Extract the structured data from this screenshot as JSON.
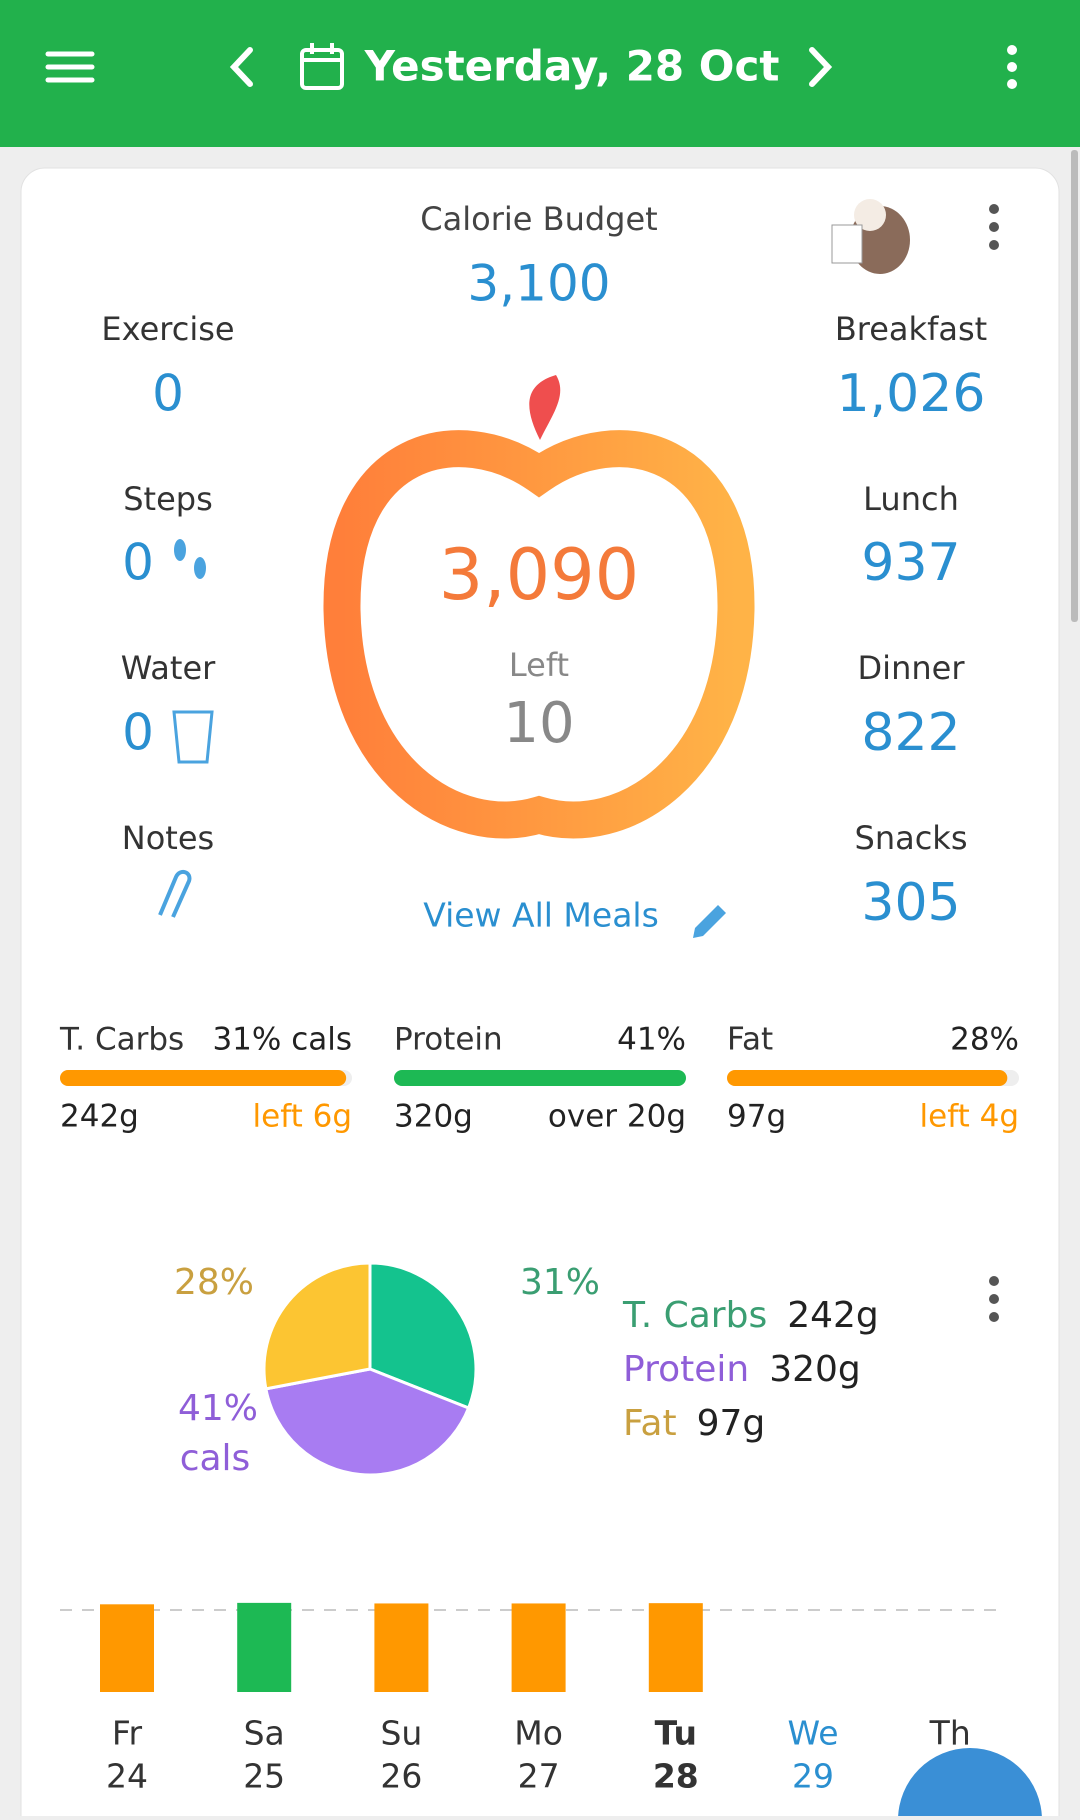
{
  "header": {
    "title": "Yesterday, 28 Oct"
  },
  "summary": {
    "budget_label": "Calorie Budget",
    "budget": "3,100",
    "activity": [
      {
        "label": "Exercise",
        "value": "0"
      },
      {
        "label": "Steps",
        "value": "0"
      },
      {
        "label": "Water",
        "value": "0"
      }
    ],
    "notes_label": "Notes",
    "meals": [
      {
        "label": "Breakfast",
        "value": "1,026"
      },
      {
        "label": "Lunch",
        "value": "937"
      },
      {
        "label": "Dinner",
        "value": "822"
      },
      {
        "label": "Snacks",
        "value": "305"
      }
    ],
    "remaining": "3,090",
    "left_label": "Left",
    "left_value": "10",
    "view_all": "View All Meals"
  },
  "macros": [
    {
      "name": "T. Carbs",
      "pct": "31% cals",
      "grams": "242g",
      "status": "left 6g",
      "progress": 0.98,
      "color": "#ff9800",
      "status_color": "#ff9800"
    },
    {
      "name": "Protein",
      "pct": "41%",
      "grams": "320g",
      "status": "over 20g",
      "progress": 1,
      "color": "#1db954",
      "status_color": "#222222"
    },
    {
      "name": "Fat",
      "pct": "28%",
      "grams": "97g",
      "status": "left 4g",
      "progress": 0.96,
      "color": "#ff9800",
      "status_color": "#ff9800"
    }
  ],
  "macro_pie": {
    "type": "pie",
    "names": [
      "T. Carbs",
      "Protein",
      "Fat"
    ],
    "values": [
      31,
      41,
      28
    ],
    "value_labels": [
      "31%",
      "41%",
      "28%"
    ],
    "unit_label": "cals",
    "colors": [
      "#14c38e",
      "#a87cf2",
      "#fcc532"
    ],
    "label_colors": [
      "#3a9e72",
      "#8f5ed8",
      "#c9a040"
    ],
    "grams": [
      "242g",
      "320g",
      "97g"
    ]
  },
  "weekly": {
    "type": "bar",
    "ylim": [
      0,
      3200
    ],
    "days": [
      {
        "day": "Fr",
        "date": "24"
      },
      {
        "day": "Sa",
        "date": "25"
      },
      {
        "day": "Su",
        "date": "26"
      },
      {
        "day": "Mo",
        "date": "27"
      },
      {
        "day": "Tu",
        "date": "28"
      },
      {
        "day": "We",
        "date": "29"
      },
      {
        "day": "Th",
        "date": null
      }
    ],
    "values": [
      3050,
      3100,
      3080,
      3080,
      3090,
      null,
      null
    ],
    "colors": [
      "#ff9800",
      "#1db954",
      "#ff9800",
      "#ff9800",
      "#ff9800",
      null,
      null
    ]
  }
}
